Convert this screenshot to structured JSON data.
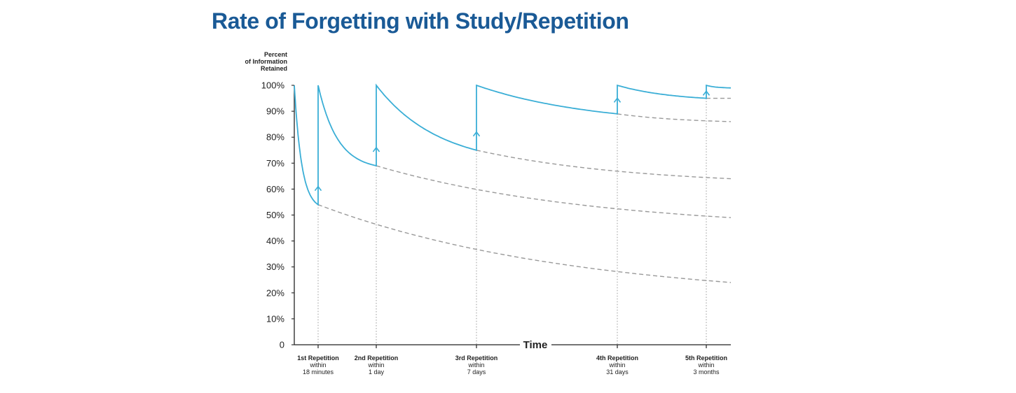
{
  "title": "Rate of Forgetting with Study/Repetition",
  "colors": {
    "title": "#1a5a96",
    "curve": "#3aaed6",
    "dashed": "#999999",
    "axis": "#222222",
    "guide": "#9a9a9a"
  },
  "chart_data": {
    "type": "line",
    "title": "Rate of Forgetting with Study/Repetition",
    "ylabel_lines": [
      "Percent",
      "of Information",
      "Retained"
    ],
    "xlabel": "Time",
    "ylim": [
      0,
      100
    ],
    "yticks": [
      {
        "value": 0,
        "label": "0"
      },
      {
        "value": 10,
        "label": "10%"
      },
      {
        "value": 20,
        "label": "20%"
      },
      {
        "value": 30,
        "label": "30%"
      },
      {
        "value": 40,
        "label": "40%"
      },
      {
        "value": 50,
        "label": "50%"
      },
      {
        "value": 60,
        "label": "60%"
      },
      {
        "value": 70,
        "label": "70%"
      },
      {
        "value": 80,
        "label": "80%"
      },
      {
        "value": 90,
        "label": "90%"
      },
      {
        "value": 100,
        "label": "100%"
      }
    ],
    "grid": false,
    "repetitions": [
      {
        "name": "1st Repetition",
        "within": "within",
        "interval": "18 minutes"
      },
      {
        "name": "2nd Repetition",
        "within": "within",
        "interval": "1 day"
      },
      {
        "name": "3rd Repetition",
        "within": "within",
        "interval": "7 days"
      },
      {
        "name": "4th Repetition",
        "within": "within",
        "interval": "31 days"
      },
      {
        "name": "5th Repetition",
        "within": "within",
        "interval": "3 months"
      }
    ],
    "retention_before_repetition": [
      54,
      69,
      75,
      89,
      95
    ],
    "retention_after_repetition": [
      100,
      100,
      100,
      100,
      100
    ],
    "retention_at_end": 99,
    "retention_without_repetition": [
      {
        "start": 54,
        "end": 24
      },
      {
        "start": 69,
        "end": 49
      },
      {
        "start": 75,
        "end": 64
      },
      {
        "start": 89,
        "end": 86
      },
      {
        "start": 95,
        "end": 95
      }
    ]
  }
}
